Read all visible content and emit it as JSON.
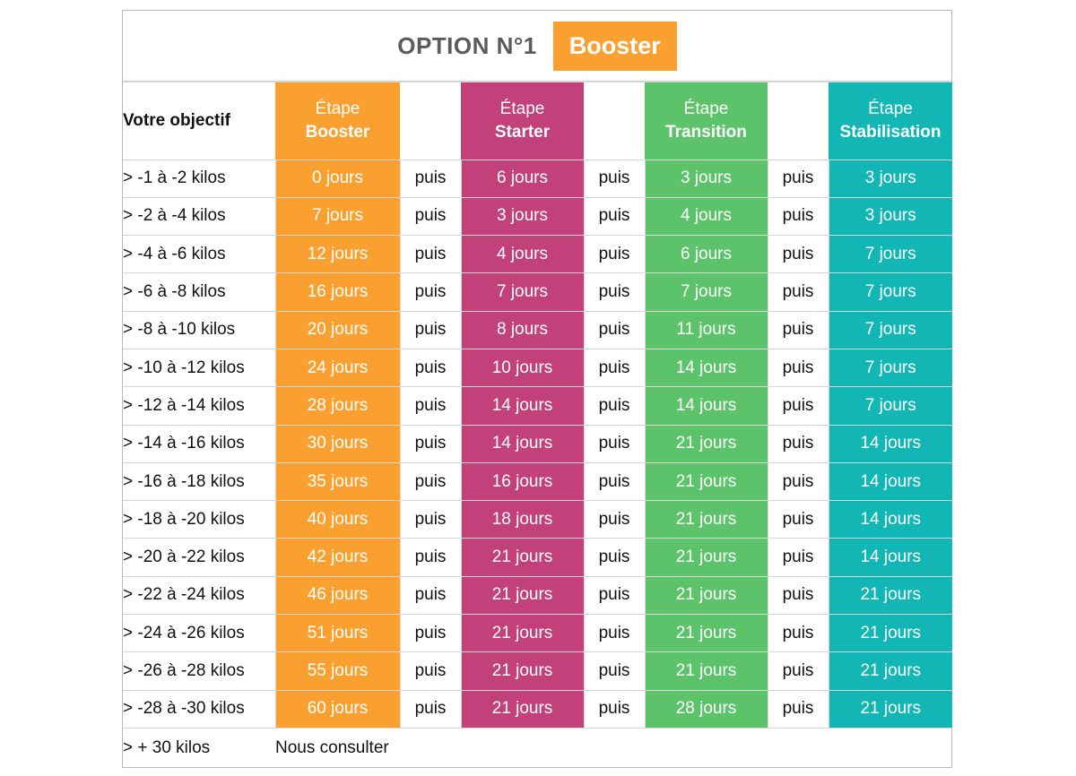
{
  "title": {
    "text": "OPTION N°1",
    "badge": "Booster"
  },
  "header": {
    "objective_label": "Votre objectif",
    "step_word": "Étape",
    "steps": [
      "Booster",
      "Starter",
      "Transition",
      "Stabilisation"
    ]
  },
  "connector": "puis",
  "rows": [
    {
      "goal": "> -1 à -2 kilos",
      "booster": "0 jours",
      "starter": "6 jours",
      "transition": "3 jours",
      "stabilisation": "3 jours"
    },
    {
      "goal": "> -2 à -4 kilos",
      "booster": "7 jours",
      "starter": "3 jours",
      "transition": "4 jours",
      "stabilisation": "3 jours"
    },
    {
      "goal": "> -4 à -6 kilos",
      "booster": "12 jours",
      "starter": "4 jours",
      "transition": "6 jours",
      "stabilisation": "7 jours"
    },
    {
      "goal": "> -6 à -8 kilos",
      "booster": "16 jours",
      "starter": "7 jours",
      "transition": "7 jours",
      "stabilisation": "7 jours"
    },
    {
      "goal": "> -8 à -10 kilos",
      "booster": "20 jours",
      "starter": "8 jours",
      "transition": "11 jours",
      "stabilisation": "7 jours"
    },
    {
      "goal": "> -10 à -12 kilos",
      "booster": "24 jours",
      "starter": "10 jours",
      "transition": "14 jours",
      "stabilisation": "7 jours"
    },
    {
      "goal": "> -12 à -14 kilos",
      "booster": "28 jours",
      "starter": "14 jours",
      "transition": "14 jours",
      "stabilisation": "7 jours"
    },
    {
      "goal": "> -14 à -16 kilos",
      "booster": "30 jours",
      "starter": "14 jours",
      "transition": "21 jours",
      "stabilisation": "14 jours"
    },
    {
      "goal": "> -16 à -18 kilos",
      "booster": "35 jours",
      "starter": "16 jours",
      "transition": "21 jours",
      "stabilisation": "14 jours"
    },
    {
      "goal": "> -18 à -20 kilos",
      "booster": "40 jours",
      "starter": "18 jours",
      "transition": "21 jours",
      "stabilisation": "14 jours"
    },
    {
      "goal": "> -20 à -22 kilos",
      "booster": "42 jours",
      "starter": "21 jours",
      "transition": "21 jours",
      "stabilisation": "14 jours"
    },
    {
      "goal": "> -22 à -24 kilos",
      "booster": "46 jours",
      "starter": "21 jours",
      "transition": "21 jours",
      "stabilisation": "21 jours"
    },
    {
      "goal": "> -24 à -26 kilos",
      "booster": "51 jours",
      "starter": "21 jours",
      "transition": "21 jours",
      "stabilisation": "21 jours"
    },
    {
      "goal": "> -26 à -28 kilos",
      "booster": "55 jours",
      "starter": "21 jours",
      "transition": "21 jours",
      "stabilisation": "21 jours"
    },
    {
      "goal": "> -28 à -30 kilos",
      "booster": "60 jours",
      "starter": "21 jours",
      "transition": "28 jours",
      "stabilisation": "21 jours"
    }
  ],
  "last_row": {
    "goal": "> + 30 kilos",
    "note": "Nous consulter"
  },
  "colors": {
    "booster": "#f9a030",
    "starter": "#c2417a",
    "transition": "#5cc36b",
    "stabilisation": "#12b7b5",
    "title_text": "#5b5b5b"
  }
}
